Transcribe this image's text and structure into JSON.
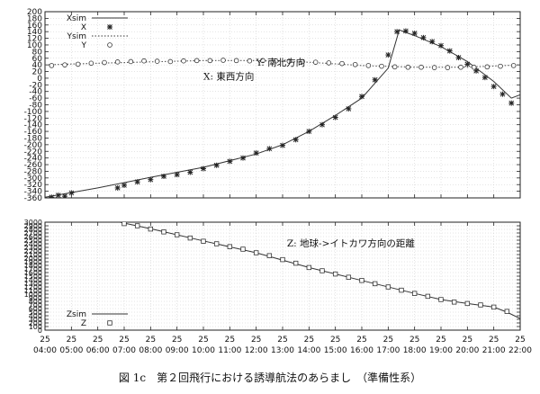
{
  "caption": "図 1c　第２回飛行における誘導航法のあらまし　（準備性系）",
  "chart_data": [
    {
      "type": "line",
      "panel": "top",
      "ylim": [
        -360,
        200
      ],
      "yticks": [
        200,
        180,
        160,
        140,
        120,
        100,
        80,
        60,
        40,
        20,
        0,
        -20,
        -40,
        -60,
        -80,
        -100,
        -120,
        -140,
        -160,
        -180,
        -200,
        -220,
        -240,
        -260,
        -280,
        -300,
        -320,
        -340,
        -360
      ],
      "ytick_labels": [
        "200",
        "180",
        "160",
        "140",
        "120",
        "100",
        "80",
        "60",
        "40",
        "20",
        "0",
        "-20",
        "-40",
        "-60",
        "-80",
        "-100",
        "-120",
        "-140",
        "-160",
        "-180",
        "-200",
        "-220",
        "-240",
        "-260",
        "-280",
        "-300",
        "-320",
        "-340",
        "-360"
      ],
      "xlim": [
        "25 04:00",
        "25 22:00"
      ],
      "grid": true,
      "legend_position": "top-left",
      "annotations": [
        {
          "text": "Y: 南北方向",
          "x": "25 12:00",
          "y": 38
        },
        {
          "text": "X: 東西方向",
          "x": "25 10:00",
          "y": -4
        }
      ],
      "series": [
        {
          "name": "Xsim",
          "style": "solid",
          "x": [
            "25 04:00",
            "25 06:00",
            "25 08:00",
            "25 10:00",
            "25 12:00",
            "25 13:00",
            "25 14:00",
            "25 15:00",
            "25 16:00",
            "25 17:00",
            "25 17:25",
            "25 18:00",
            "25 19:00",
            "25 20:00",
            "25 21:00",
            "25 21:40",
            "25 22:00"
          ],
          "y": [
            -358,
            -330,
            -298,
            -268,
            -228,
            -200,
            -160,
            -112,
            -60,
            30,
            145,
            128,
            95,
            50,
            -10,
            -60,
            -50
          ]
        },
        {
          "name": "X",
          "style": "marker-star",
          "x": [
            "25 04:15",
            "25 04:30",
            "25 04:45",
            "25 05:00",
            "25 06:45",
            "25 07:00",
            "25 07:30",
            "25 08:00",
            "25 08:30",
            "25 09:00",
            "25 09:30",
            "25 10:00",
            "25 10:30",
            "25 11:00",
            "25 11:30",
            "25 12:00",
            "25 12:30",
            "25 13:00",
            "25 13:30",
            "25 14:00",
            "25 14:30",
            "25 15:00",
            "25 15:30",
            "25 16:00",
            "25 16:30",
            "25 17:00",
            "25 17:20",
            "25 17:40",
            "25 18:00",
            "25 18:20",
            "25 18:40",
            "25 19:00",
            "25 19:20",
            "25 19:40",
            "25 20:00",
            "25 20:20",
            "25 20:40",
            "25 21:00",
            "25 21:20",
            "25 21:40"
          ],
          "y": [
            -358,
            -352,
            -355,
            -345,
            -330,
            -322,
            -312,
            -305,
            -295,
            -290,
            -283,
            -272,
            -262,
            -250,
            -240,
            -225,
            -212,
            -202,
            -185,
            -160,
            -140,
            -118,
            -92,
            -55,
            -5,
            70,
            140,
            142,
            135,
            122,
            110,
            98,
            82,
            62,
            42,
            22,
            2,
            -25,
            -48,
            -75
          ]
        },
        {
          "name": "Ysim",
          "style": "dotted",
          "x": [
            "25 04:00",
            "25 06:00",
            "25 08:00",
            "25 10:00",
            "25 12:00",
            "25 14:00",
            "25 16:00",
            "25 18:00",
            "25 20:00",
            "25 22:00"
          ],
          "y": [
            40,
            45,
            49,
            53,
            53,
            48,
            38,
            33,
            33,
            40
          ]
        },
        {
          "name": "Y",
          "style": "marker-circle",
          "x": [
            "25 04:15",
            "25 04:45",
            "25 05:15",
            "25 05:45",
            "25 06:15",
            "25 06:45",
            "25 07:15",
            "25 07:45",
            "25 08:15",
            "25 08:45",
            "25 09:15",
            "25 09:45",
            "25 10:15",
            "25 10:45",
            "25 11:15",
            "25 11:45",
            "25 12:15",
            "25 12:45",
            "25 13:15",
            "25 13:45",
            "25 14:15",
            "25 14:45",
            "25 15:15",
            "25 15:45",
            "25 16:15",
            "25 16:45",
            "25 17:15",
            "25 17:45",
            "25 18:15",
            "25 18:45",
            "25 19:15",
            "25 19:45",
            "25 20:15",
            "25 20:45",
            "25 21:15",
            "25 21:45"
          ],
          "y": [
            38,
            40,
            42,
            45,
            47,
            49,
            50,
            52,
            51,
            50,
            52,
            53,
            53,
            54,
            53,
            52,
            53,
            52,
            51,
            50,
            48,
            46,
            44,
            41,
            38,
            36,
            34,
            33,
            33,
            32,
            32,
            33,
            33,
            34,
            36,
            38
          ]
        }
      ]
    },
    {
      "type": "line",
      "panel": "bottom",
      "ylim": [
        0,
        3000
      ],
      "yticks": [
        3000,
        2900,
        2800,
        2700,
        2600,
        2500,
        2400,
        2300,
        2200,
        2100,
        2000,
        1900,
        1800,
        1700,
        1600,
        1500,
        1400,
        1300,
        1200,
        1100,
        1000,
        900,
        800,
        700,
        600,
        500,
        400,
        300,
        200,
        100,
        0
      ],
      "ytick_labels": [
        "3000",
        "2900",
        "2800",
        "2700",
        "2600",
        "2500",
        "2400",
        "2300",
        "2200",
        "2100",
        "2000",
        "1900",
        "1800",
        "1700",
        "1600",
        "1500",
        "1400",
        "1300",
        "1200",
        "1100",
        "1000",
        "900",
        "800",
        "700",
        "600",
        "500",
        "400",
        "300",
        "200",
        "100",
        "0"
      ],
      "xlim": [
        "25 04:00",
        "25 22:00"
      ],
      "xtick_day_labels": [
        "25",
        "25",
        "25",
        "25",
        "25",
        "25",
        "25",
        "25",
        "25",
        "25",
        "25",
        "25",
        "25",
        "25",
        "25",
        "25",
        "25",
        "25",
        "25"
      ],
      "xtick_time_labels": [
        "04:00",
        "05:00",
        "06:00",
        "07:00",
        "08:00",
        "09:00",
        "10:00",
        "11:00",
        "12:00",
        "13:00",
        "14:00",
        "15:00",
        "16:00",
        "17:00",
        "18:00",
        "19:00",
        "20:00",
        "21:00",
        "22:00"
      ],
      "grid": true,
      "legend_position": "bottom-left",
      "annotations": [
        {
          "text": "Z: 地球->イトカワ方向の距離",
          "x": "25 13:10",
          "y": 2330
        }
      ],
      "series": [
        {
          "name": "Zsim",
          "style": "solid",
          "x": [
            "25 06:50",
            "25 08:00",
            "25 10:00",
            "25 12:00",
            "25 14:00",
            "25 16:00",
            "25 18:00",
            "25 19:00",
            "25 20:00",
            "25 21:00",
            "25 21:30",
            "25 22:00"
          ],
          "y": [
            3000,
            2820,
            2480,
            2150,
            1740,
            1380,
            1020,
            850,
            740,
            640,
            500,
            320
          ]
        },
        {
          "name": "Z",
          "style": "marker-square",
          "x": [
            "25 07:00",
            "25 07:30",
            "25 08:00",
            "25 08:30",
            "25 09:00",
            "25 09:30",
            "25 10:00",
            "25 10:30",
            "25 11:00",
            "25 11:30",
            "25 12:00",
            "25 12:30",
            "25 13:00",
            "25 13:30",
            "25 14:00",
            "25 14:30",
            "25 15:00",
            "25 15:30",
            "25 16:00",
            "25 16:30",
            "25 17:00",
            "25 17:30",
            "25 18:00",
            "25 18:30",
            "25 19:00",
            "25 19:30",
            "25 20:00",
            "25 20:30",
            "25 21:00",
            "25 21:30"
          ],
          "y": [
            2960,
            2900,
            2810,
            2730,
            2650,
            2560,
            2470,
            2400,
            2320,
            2250,
            2150,
            2070,
            1960,
            1860,
            1740,
            1650,
            1560,
            1470,
            1380,
            1290,
            1200,
            1110,
            1020,
            940,
            850,
            780,
            740,
            700,
            640,
            520
          ]
        }
      ]
    }
  ]
}
